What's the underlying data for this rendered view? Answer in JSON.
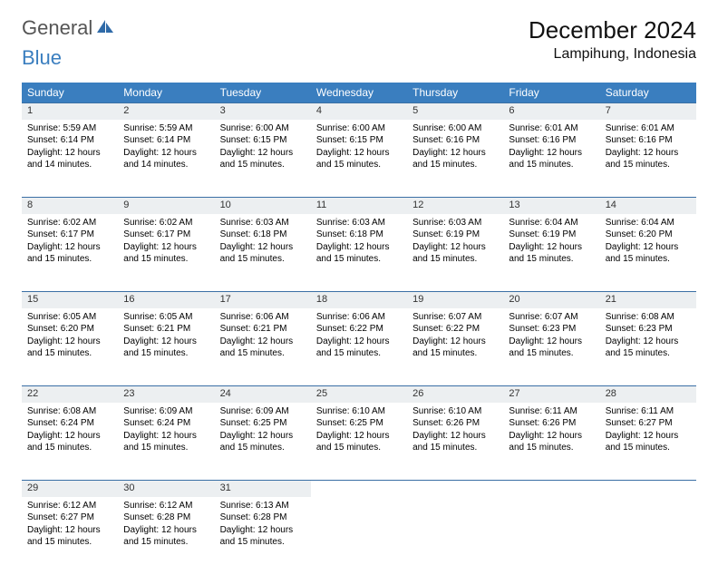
{
  "logo": {
    "text1": "General",
    "text2": "Blue"
  },
  "title": "December 2024",
  "location": "Lampihung, Indonesia",
  "colors": {
    "header_bg": "#3a7ebf",
    "header_fg": "#ffffff",
    "daynum_bg": "#eceff1",
    "day_border": "#3a6fa5",
    "page_bg": "#ffffff",
    "logo_gray": "#555555",
    "logo_blue": "#3a7ebf"
  },
  "weekdays": [
    "Sunday",
    "Monday",
    "Tuesday",
    "Wednesday",
    "Thursday",
    "Friday",
    "Saturday"
  ],
  "weeks": [
    [
      {
        "num": "1",
        "sunrise": "5:59 AM",
        "sunset": "6:14 PM",
        "daylight": "12 hours and 14 minutes."
      },
      {
        "num": "2",
        "sunrise": "5:59 AM",
        "sunset": "6:14 PM",
        "daylight": "12 hours and 14 minutes."
      },
      {
        "num": "3",
        "sunrise": "6:00 AM",
        "sunset": "6:15 PM",
        "daylight": "12 hours and 15 minutes."
      },
      {
        "num": "4",
        "sunrise": "6:00 AM",
        "sunset": "6:15 PM",
        "daylight": "12 hours and 15 minutes."
      },
      {
        "num": "5",
        "sunrise": "6:00 AM",
        "sunset": "6:16 PM",
        "daylight": "12 hours and 15 minutes."
      },
      {
        "num": "6",
        "sunrise": "6:01 AM",
        "sunset": "6:16 PM",
        "daylight": "12 hours and 15 minutes."
      },
      {
        "num": "7",
        "sunrise": "6:01 AM",
        "sunset": "6:16 PM",
        "daylight": "12 hours and 15 minutes."
      }
    ],
    [
      {
        "num": "8",
        "sunrise": "6:02 AM",
        "sunset": "6:17 PM",
        "daylight": "12 hours and 15 minutes."
      },
      {
        "num": "9",
        "sunrise": "6:02 AM",
        "sunset": "6:17 PM",
        "daylight": "12 hours and 15 minutes."
      },
      {
        "num": "10",
        "sunrise": "6:03 AM",
        "sunset": "6:18 PM",
        "daylight": "12 hours and 15 minutes."
      },
      {
        "num": "11",
        "sunrise": "6:03 AM",
        "sunset": "6:18 PM",
        "daylight": "12 hours and 15 minutes."
      },
      {
        "num": "12",
        "sunrise": "6:03 AM",
        "sunset": "6:19 PM",
        "daylight": "12 hours and 15 minutes."
      },
      {
        "num": "13",
        "sunrise": "6:04 AM",
        "sunset": "6:19 PM",
        "daylight": "12 hours and 15 minutes."
      },
      {
        "num": "14",
        "sunrise": "6:04 AM",
        "sunset": "6:20 PM",
        "daylight": "12 hours and 15 minutes."
      }
    ],
    [
      {
        "num": "15",
        "sunrise": "6:05 AM",
        "sunset": "6:20 PM",
        "daylight": "12 hours and 15 minutes."
      },
      {
        "num": "16",
        "sunrise": "6:05 AM",
        "sunset": "6:21 PM",
        "daylight": "12 hours and 15 minutes."
      },
      {
        "num": "17",
        "sunrise": "6:06 AM",
        "sunset": "6:21 PM",
        "daylight": "12 hours and 15 minutes."
      },
      {
        "num": "18",
        "sunrise": "6:06 AM",
        "sunset": "6:22 PM",
        "daylight": "12 hours and 15 minutes."
      },
      {
        "num": "19",
        "sunrise": "6:07 AM",
        "sunset": "6:22 PM",
        "daylight": "12 hours and 15 minutes."
      },
      {
        "num": "20",
        "sunrise": "6:07 AM",
        "sunset": "6:23 PM",
        "daylight": "12 hours and 15 minutes."
      },
      {
        "num": "21",
        "sunrise": "6:08 AM",
        "sunset": "6:23 PM",
        "daylight": "12 hours and 15 minutes."
      }
    ],
    [
      {
        "num": "22",
        "sunrise": "6:08 AM",
        "sunset": "6:24 PM",
        "daylight": "12 hours and 15 minutes."
      },
      {
        "num": "23",
        "sunrise": "6:09 AM",
        "sunset": "6:24 PM",
        "daylight": "12 hours and 15 minutes."
      },
      {
        "num": "24",
        "sunrise": "6:09 AM",
        "sunset": "6:25 PM",
        "daylight": "12 hours and 15 minutes."
      },
      {
        "num": "25",
        "sunrise": "6:10 AM",
        "sunset": "6:25 PM",
        "daylight": "12 hours and 15 minutes."
      },
      {
        "num": "26",
        "sunrise": "6:10 AM",
        "sunset": "6:26 PM",
        "daylight": "12 hours and 15 minutes."
      },
      {
        "num": "27",
        "sunrise": "6:11 AM",
        "sunset": "6:26 PM",
        "daylight": "12 hours and 15 minutes."
      },
      {
        "num": "28",
        "sunrise": "6:11 AM",
        "sunset": "6:27 PM",
        "daylight": "12 hours and 15 minutes."
      }
    ],
    [
      {
        "num": "29",
        "sunrise": "6:12 AM",
        "sunset": "6:27 PM",
        "daylight": "12 hours and 15 minutes."
      },
      {
        "num": "30",
        "sunrise": "6:12 AM",
        "sunset": "6:28 PM",
        "daylight": "12 hours and 15 minutes."
      },
      {
        "num": "31",
        "sunrise": "6:13 AM",
        "sunset": "6:28 PM",
        "daylight": "12 hours and 15 minutes."
      },
      null,
      null,
      null,
      null
    ]
  ],
  "labels": {
    "sunrise": "Sunrise:",
    "sunset": "Sunset:",
    "daylight": "Daylight:"
  }
}
